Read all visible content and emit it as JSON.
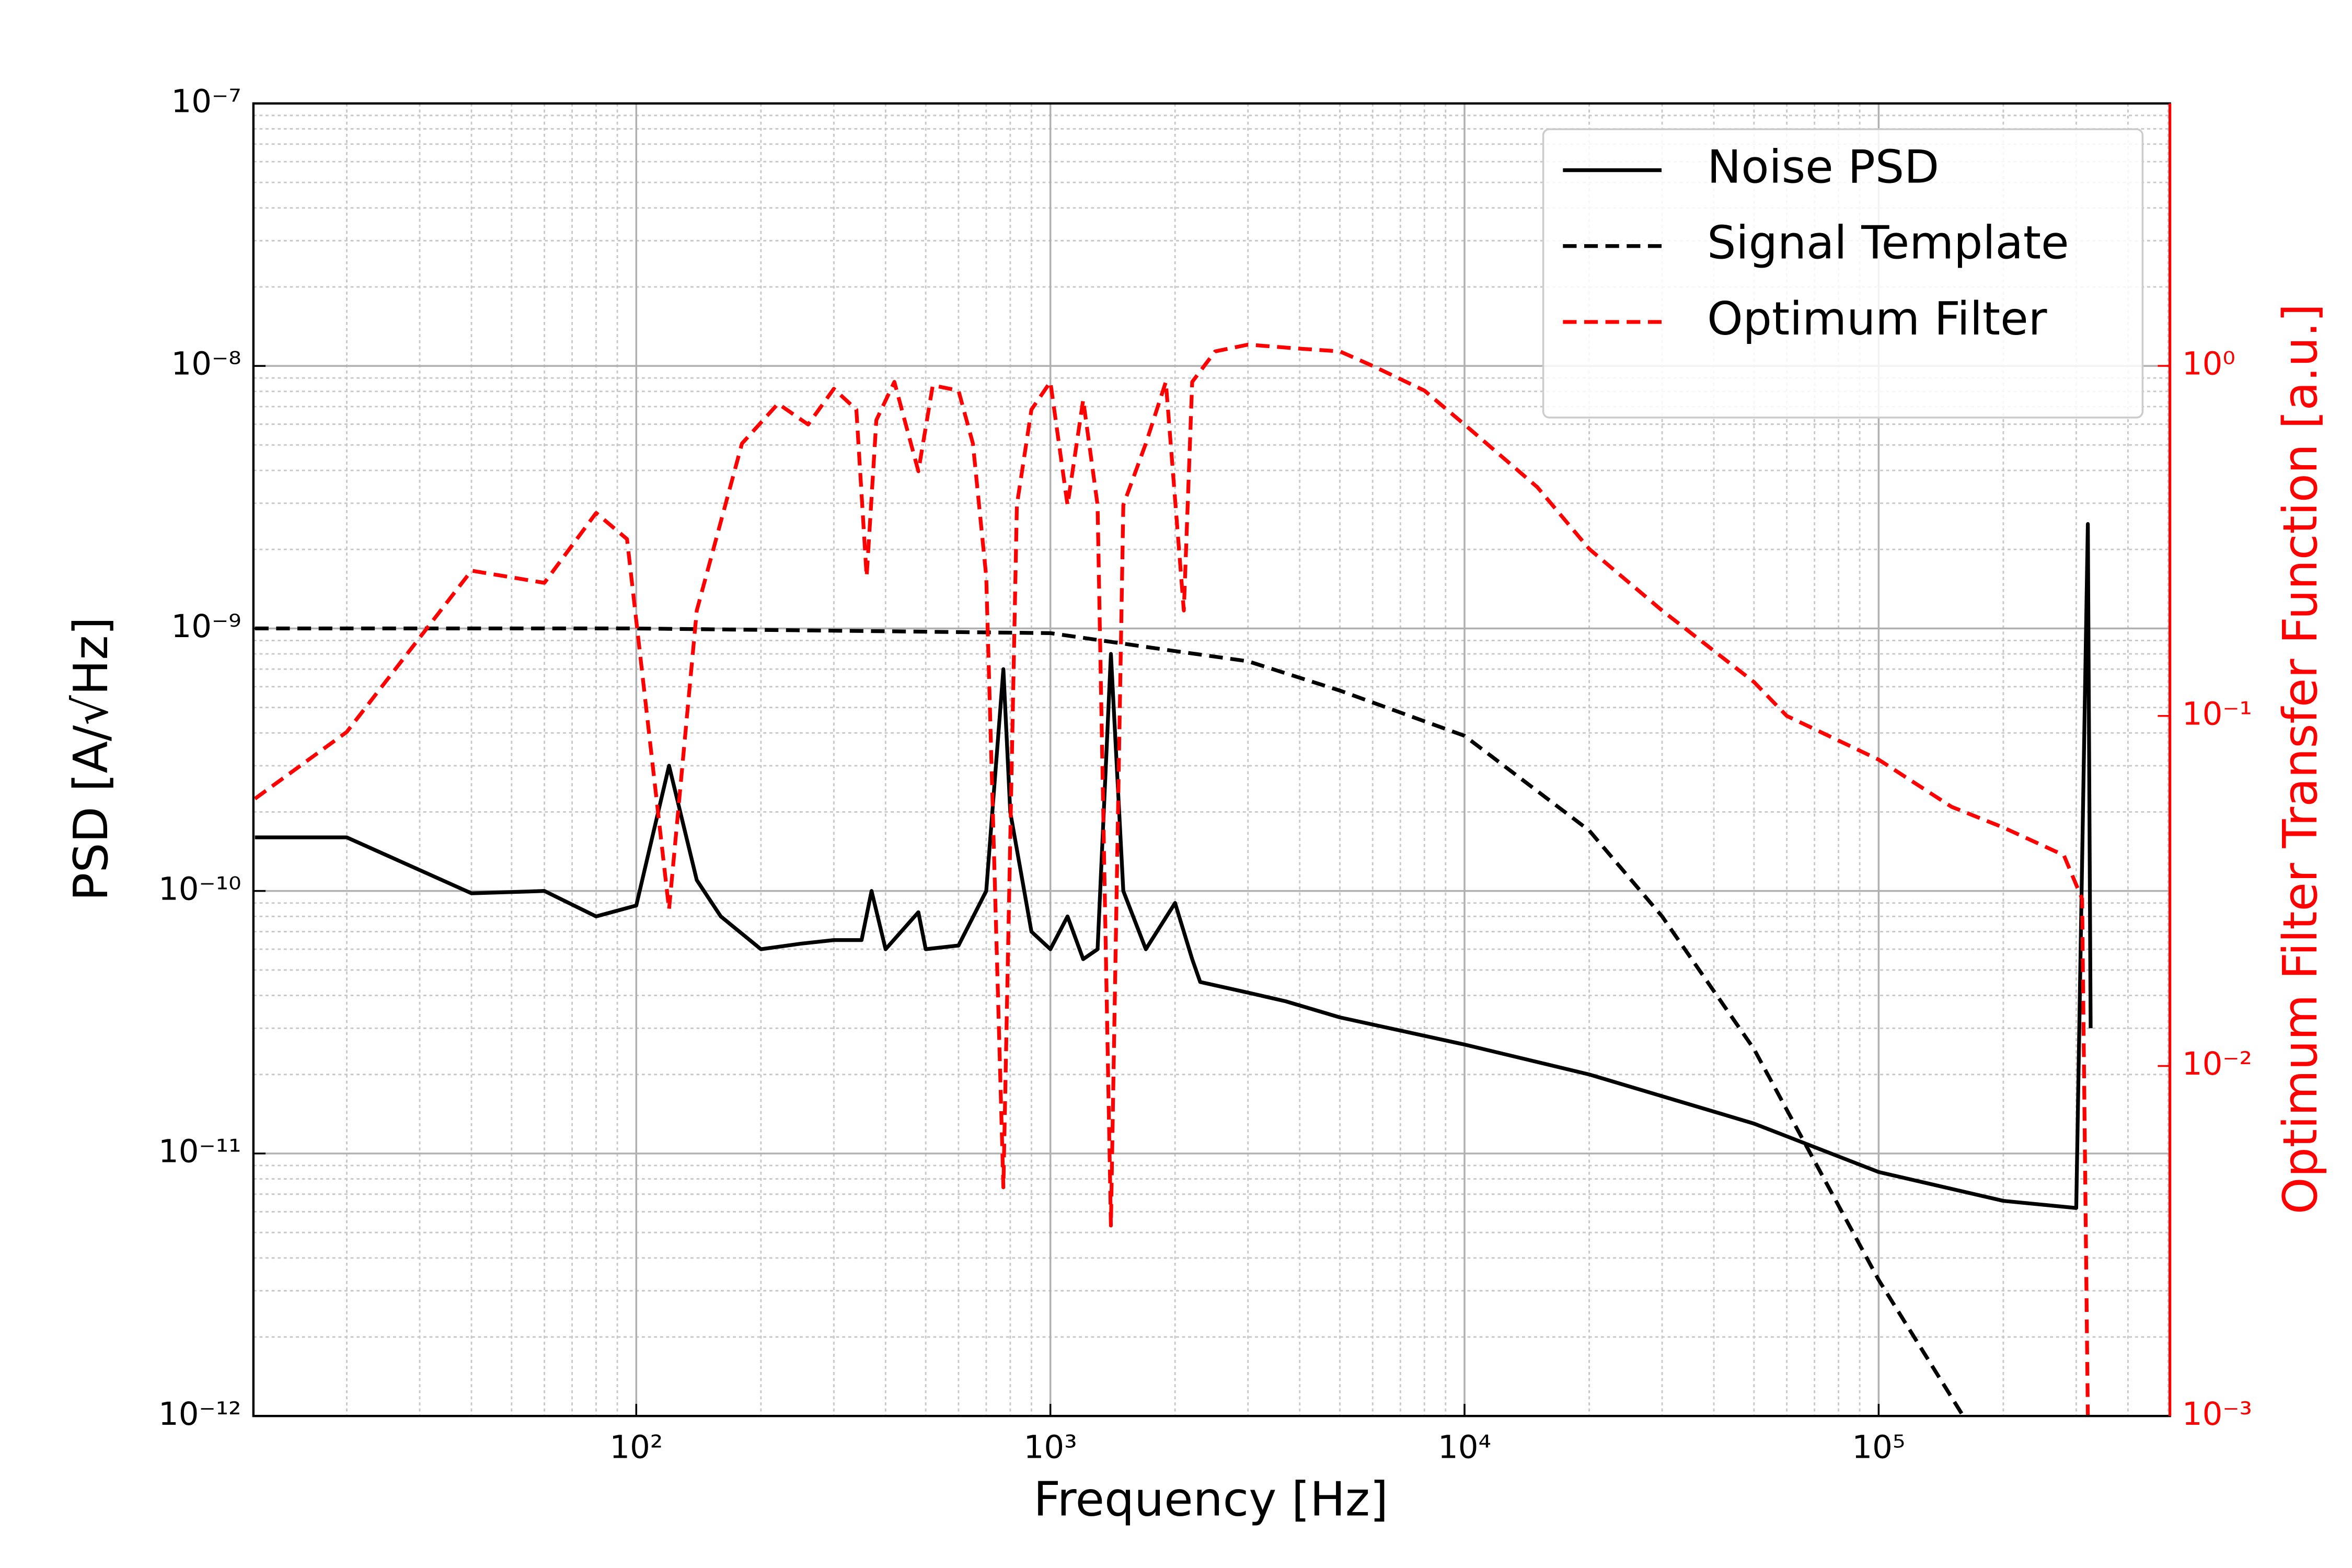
{
  "chart_data": {
    "type": "line",
    "xlabel": "Frequency [Hz]",
    "ylabel": "PSD [A/√Hz]",
    "y2label": "Optimum Filter Transfer Function [a.u.]",
    "xscale": "log",
    "yscale": "log",
    "y2scale": "log",
    "xlim": [
      11.9,
      505000
    ],
    "ylim": [
      1e-12,
      1e-07
    ],
    "y2lim": [
      0.001,
      5.62
    ],
    "xticks": [
      {
        "value": 100,
        "label": "10²"
      },
      {
        "value": 1000,
        "label": "10³"
      },
      {
        "value": 10000,
        "label": "10⁴"
      },
      {
        "value": 100000,
        "label": "10⁵"
      }
    ],
    "yticks": [
      {
        "value": 1e-12,
        "label": "10⁻¹²"
      },
      {
        "value": 1e-11,
        "label": "10⁻¹¹"
      },
      {
        "value": 1e-10,
        "label": "10⁻¹⁰"
      },
      {
        "value": 1e-09,
        "label": "10⁻⁹"
      },
      {
        "value": 1e-08,
        "label": "10⁻⁸"
      },
      {
        "value": 1e-07,
        "label": "10⁻⁷"
      }
    ],
    "y2ticks": [
      {
        "value": 0.001,
        "label": "10⁻³"
      },
      {
        "value": 0.01,
        "label": "10⁻²"
      },
      {
        "value": 0.1,
        "label": "10⁻¹"
      },
      {
        "value": 1,
        "label": "10⁰"
      }
    ],
    "y2color": "#ff0000",
    "grid": true,
    "minor_grid": true,
    "legend": "upper right",
    "series": [
      {
        "name": "Noise PSD",
        "color": "#000000",
        "linestyle": "solid",
        "x": [
          12,
          20,
          40,
          60,
          80,
          100,
          120,
          140,
          160,
          200,
          250,
          300,
          350,
          370,
          400,
          480,
          500,
          600,
          700,
          770,
          800,
          900,
          1000,
          1100,
          1200,
          1300,
          1400,
          1500,
          1700,
          2000,
          2200,
          2300,
          3000,
          3700,
          5000,
          10000,
          20000,
          50000,
          100000,
          200000,
          300000,
          320000,
          325000
        ],
        "values": [
          1.6e-10,
          1.6e-10,
          9.8e-11,
          1e-10,
          8e-11,
          8.8e-11,
          3e-10,
          1.1e-10,
          8e-11,
          6e-11,
          6.3e-11,
          6.5e-11,
          6.5e-11,
          1e-10,
          6e-11,
          8.3e-11,
          6e-11,
          6.2e-11,
          1e-10,
          7e-10,
          2e-10,
          7e-11,
          6e-11,
          8e-11,
          5.5e-11,
          6e-11,
          8e-10,
          1e-10,
          6e-11,
          9e-11,
          5.5e-11,
          4.5e-11,
          4.1e-11,
          3.8e-11,
          3.3e-11,
          2.6e-11,
          2e-11,
          1.3e-11,
          8.5e-12,
          6.6e-12,
          6.2e-12,
          2.5e-09,
          3e-11
        ]
      },
      {
        "name": "Signal Template",
        "color": "#000000",
        "linestyle": "dashed",
        "x": [
          12,
          100,
          1000,
          2000,
          3000,
          5000,
          10000,
          20000,
          30000,
          50000,
          100000,
          160000
        ],
        "values": [
          1e-09,
          1e-09,
          9.6e-10,
          8.2e-10,
          7.5e-10,
          5.8e-10,
          3.9e-10,
          1.7e-10,
          8e-11,
          2.5e-11,
          3.3e-12,
          1e-12
        ]
      },
      {
        "name": "Optimum Filter",
        "color": "#ff0000",
        "linestyle": "dashed",
        "axis": "y2",
        "x": [
          12,
          20,
          40,
          60,
          80,
          95,
          120,
          140,
          180,
          220,
          260,
          300,
          340,
          360,
          380,
          420,
          480,
          520,
          600,
          650,
          700,
          770,
          830,
          900,
          1000,
          1100,
          1200,
          1300,
          1400,
          1500,
          1700,
          1900,
          2100,
          2200,
          2500,
          3000,
          4000,
          5000,
          6000,
          8000,
          10000,
          15000,
          20000,
          30000,
          50000,
          60000,
          100000,
          150000,
          200000,
          280000,
          310000,
          320000
        ],
        "values": [
          0.058,
          0.09,
          0.26,
          0.24,
          0.38,
          0.32,
          0.028,
          0.2,
          0.6,
          0.78,
          0.68,
          0.86,
          0.75,
          0.25,
          0.7,
          0.9,
          0.5,
          0.88,
          0.85,
          0.6,
          0.25,
          0.0045,
          0.4,
          0.75,
          0.9,
          0.4,
          0.8,
          0.4,
          0.0035,
          0.4,
          0.6,
          0.9,
          0.2,
          0.9,
          1.1,
          1.15,
          1.12,
          1.1,
          1.0,
          0.85,
          0.68,
          0.45,
          0.3,
          0.2,
          0.125,
          0.1,
          0.075,
          0.055,
          0.048,
          0.04,
          0.03,
          0.001
        ]
      }
    ]
  }
}
